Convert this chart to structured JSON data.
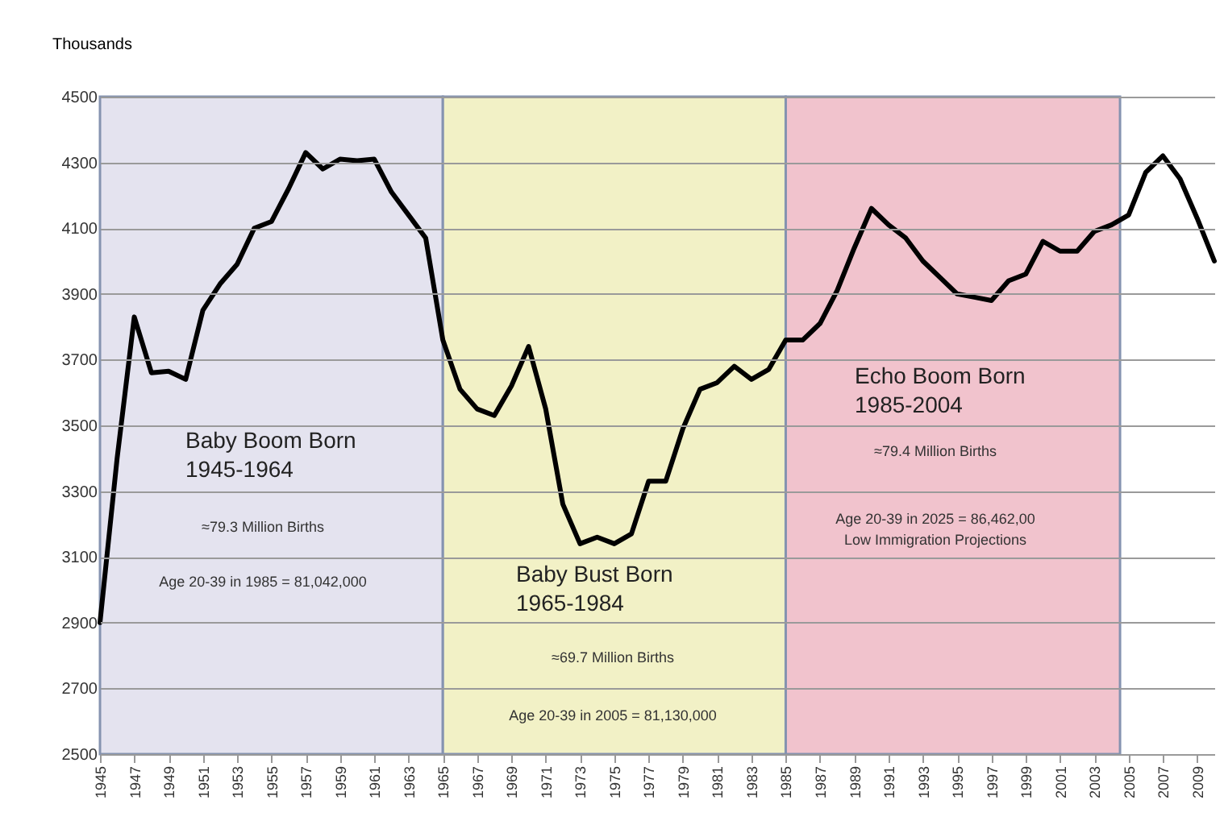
{
  "chart_data": {
    "type": "line",
    "ylabel": "Thousands",
    "x": [
      1945,
      1946,
      1947,
      1948,
      1949,
      1950,
      1951,
      1952,
      1953,
      1954,
      1955,
      1956,
      1957,
      1958,
      1959,
      1960,
      1961,
      1962,
      1963,
      1964,
      1965,
      1966,
      1967,
      1968,
      1969,
      1970,
      1971,
      1972,
      1973,
      1974,
      1975,
      1976,
      1977,
      1978,
      1979,
      1980,
      1981,
      1982,
      1983,
      1984,
      1985,
      1986,
      1987,
      1988,
      1989,
      1990,
      1991,
      1992,
      1993,
      1994,
      1995,
      1996,
      1997,
      1998,
      1999,
      2000,
      2001,
      2002,
      2003,
      2004,
      2005,
      2006,
      2007,
      2008,
      2009,
      2010
    ],
    "series": [
      {
        "color": "#000000",
        "values": [
          2900,
          3400,
          3830,
          3660,
          3665,
          3640,
          3850,
          3930,
          3990,
          4100,
          4120,
          4220,
          4330,
          4280,
          4310,
          4305,
          4310,
          4210,
          4140,
          4070,
          3760,
          3610,
          3550,
          3530,
          3620,
          3740,
          3550,
          3260,
          3140,
          3160,
          3140,
          3170,
          3330,
          3330,
          3490,
          3610,
          3630,
          3680,
          3640,
          3670,
          3760,
          3760,
          3810,
          3910,
          4040,
          4160,
          4110,
          4070,
          4000,
          3950,
          3900,
          3890,
          3880,
          3940,
          3960,
          4060,
          4030,
          4030,
          4090,
          4110,
          4140,
          4270,
          4320,
          4250,
          4130,
          4000
        ]
      }
    ],
    "xlim": [
      1945,
      2010
    ],
    "xticks": [
      1945,
      1947,
      1949,
      1951,
      1953,
      1955,
      1957,
      1959,
      1961,
      1963,
      1965,
      1967,
      1969,
      1971,
      1973,
      1975,
      1977,
      1979,
      1981,
      1983,
      1985,
      1987,
      1989,
      1991,
      1993,
      1995,
      1997,
      1999,
      2001,
      2003,
      2005,
      2007,
      2009
    ],
    "ylim": [
      2500,
      4500
    ],
    "yticks": [
      2500,
      2700,
      2900,
      3100,
      3300,
      3500,
      3700,
      3900,
      4100,
      4300,
      4500
    ],
    "grid": "y",
    "marker": "none",
    "line_style": "solid",
    "bands": [
      {
        "axis": "x",
        "from": 1945,
        "to": 1965,
        "label": "Baby Boom Born\n1945-1964",
        "color": "#e4e3ef"
      },
      {
        "axis": "x",
        "from": 1965,
        "to": 1985,
        "label": "Baby Bust Born\n1965-1984",
        "color": "#f2f1c6"
      },
      {
        "axis": "x",
        "from": 1985,
        "to": 2004.5,
        "label": "Echo Boom Born\n1985-2004",
        "color": "#f1c3cd"
      }
    ],
    "annotations": [
      "≈79.3 Million Births",
      "Age 20-39 in 1985 = 81,042,000",
      "≈69.7 Million Births",
      "Age 20-39 in 2005 = 81,130,000",
      "≈79.4 Million Births",
      "Age 20-39 in 2025 = 86,462,00\nLow Immigration Projections"
    ]
  }
}
